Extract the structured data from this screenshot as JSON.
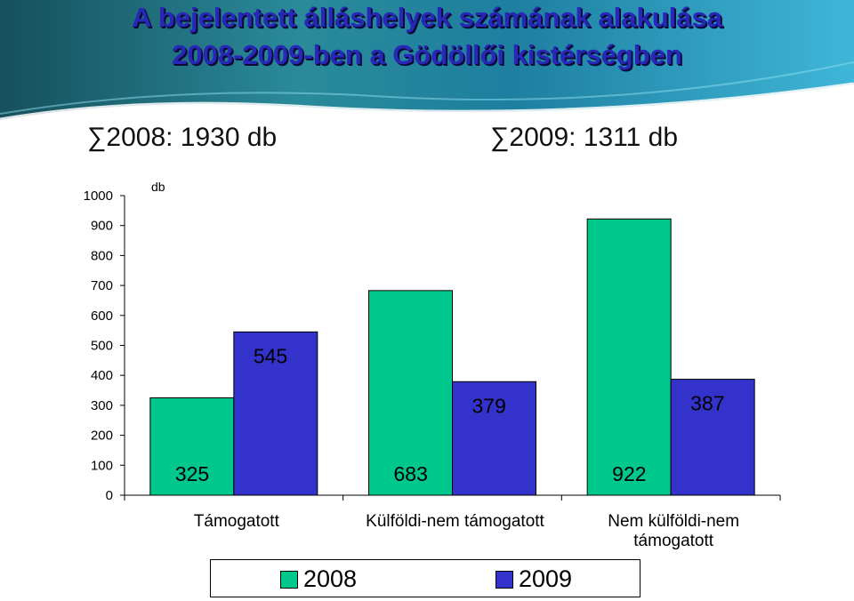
{
  "title": {
    "line1": "A bejelentett álláshelyek számának alakulása",
    "line2": "2008-2009-ben a Gödöllői kistérségben"
  },
  "totals": {
    "y2008": "∑2008: 1930 db",
    "y2009": "∑2009: 1311 db"
  },
  "colors": {
    "series2008": "#00c78c",
    "series2009": "#3333cc",
    "title": "#2828b8",
    "banner_dark": "#1a5f6a",
    "banner_light": "#3fb0cc"
  },
  "chart_data": {
    "type": "bar",
    "ylabel": "db",
    "ylim": [
      0,
      1000
    ],
    "yticks": [
      0,
      100,
      200,
      300,
      400,
      500,
      600,
      700,
      800,
      900,
      1000
    ],
    "categories": [
      "Támogatott",
      "Külföldi-nem támogatott",
      "Nem külföldi-nem támogatott"
    ],
    "series": [
      {
        "name": "2008",
        "values": [
          325,
          683,
          922
        ],
        "data_labels": [
          "325",
          "683",
          "922"
        ]
      },
      {
        "name": "2009",
        "values": [
          545,
          379,
          387
        ],
        "data_labels": [
          "545",
          "379",
          "387"
        ]
      }
    ],
    "legend_position": "bottom",
    "grid": false
  }
}
